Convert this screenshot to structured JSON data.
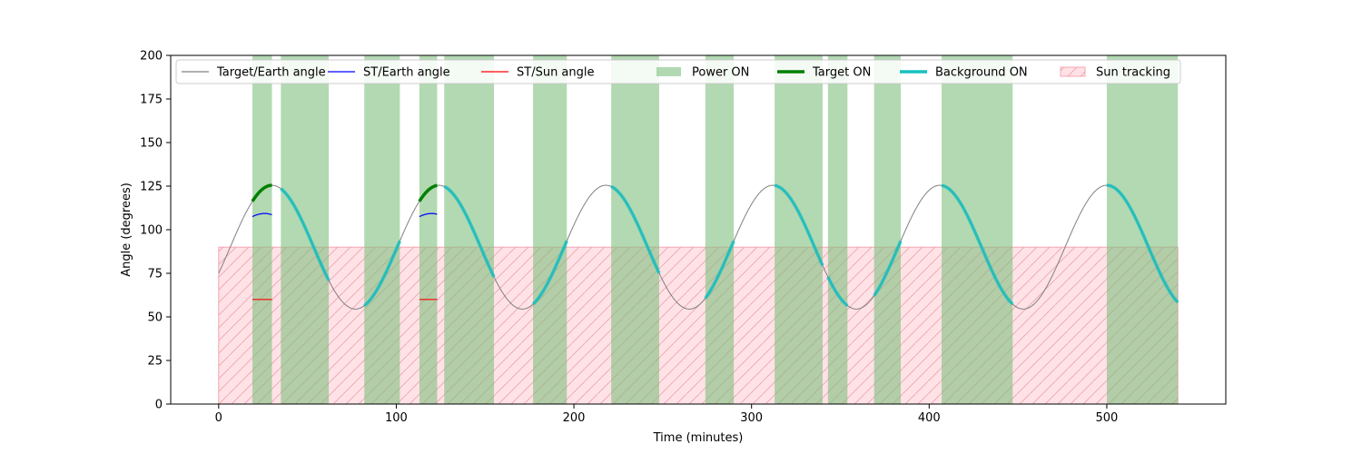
{
  "chart_data": {
    "type": "line",
    "title": "",
    "xlabel": "Time (minutes)",
    "ylabel": "Angle (degrees)",
    "xlim": [
      -27,
      567
    ],
    "ylim": [
      0,
      200
    ],
    "xticks": [
      0,
      100,
      200,
      300,
      400,
      500
    ],
    "yticks": [
      0,
      25,
      50,
      75,
      100,
      125,
      150,
      175,
      200
    ],
    "grid": false,
    "legend": {
      "placement": "top",
      "entries": [
        {
          "label": "Target/Earth angle",
          "kind": "line",
          "color": "#808080"
        },
        {
          "label": "ST/Earth angle",
          "kind": "line",
          "color": "#0000ff"
        },
        {
          "label": "ST/Sun angle",
          "kind": "line",
          "color": "#ff0000"
        },
        {
          "label": "Power ON",
          "kind": "patch",
          "color": "#7fbf7f"
        },
        {
          "label": "Target ON",
          "kind": "thickline",
          "color": "#008000"
        },
        {
          "label": "Background ON",
          "kind": "thickline",
          "color": "#17bfbf"
        },
        {
          "label": "Sun tracking",
          "kind": "hatch",
          "color": "#ffb6c1"
        }
      ]
    },
    "target_earth_angle": {
      "name": "Target/Earth angle",
      "color": "#808080",
      "mean": 90,
      "amplitude": 35.5,
      "period_min": 94,
      "peak_time_min": 30,
      "x_range": [
        0,
        540
      ]
    },
    "sun_tracking": {
      "name": "Sun tracking",
      "x_range": [
        0,
        540
      ],
      "y_max": 90,
      "color": "#ffb6c1"
    },
    "power_on": {
      "name": "Power ON",
      "color": "#7fbf7f",
      "intervals": [
        [
          19,
          30
        ],
        [
          35,
          62
        ],
        [
          82,
          102
        ],
        [
          113,
          123
        ],
        [
          127,
          155
        ],
        [
          177,
          196
        ],
        [
          221,
          248
        ],
        [
          274,
          290
        ],
        [
          313,
          340
        ],
        [
          343,
          354
        ],
        [
          369,
          384
        ],
        [
          407,
          447
        ],
        [
          500,
          540
        ]
      ]
    },
    "target_on": {
      "name": "Target ON",
      "color": "#008000",
      "intervals": [
        [
          19,
          30
        ],
        [
          113,
          123
        ]
      ]
    },
    "background_on": {
      "name": "Background ON",
      "color": "#17bfbf",
      "intervals": [
        [
          35,
          62
        ],
        [
          82,
          102
        ],
        [
          127,
          155
        ],
        [
          177,
          196
        ],
        [
          221,
          248
        ],
        [
          274,
          290
        ],
        [
          313,
          340
        ],
        [
          343,
          354
        ],
        [
          369,
          384
        ],
        [
          407,
          447
        ],
        [
          500,
          540
        ]
      ]
    },
    "st_earth_angle": {
      "name": "ST/Earth angle",
      "color": "#0000ff",
      "segments": [
        {
          "x": [
            19,
            21,
            23,
            25,
            27,
            29,
            30
          ],
          "y": [
            107.5,
            108.4,
            109.0,
            109.3,
            109.3,
            108.9,
            108.6
          ]
        },
        {
          "x": [
            113,
            115,
            117,
            119,
            121,
            123
          ],
          "y": [
            107.5,
            108.4,
            109.0,
            109.3,
            109.3,
            108.9
          ]
        }
      ]
    },
    "st_sun_angle": {
      "name": "ST/Sun angle",
      "color": "#ff0000",
      "segments": [
        {
          "x": [
            19,
            30
          ],
          "y": [
            60,
            60
          ]
        },
        {
          "x": [
            113,
            123
          ],
          "y": [
            60,
            60
          ]
        }
      ]
    }
  }
}
